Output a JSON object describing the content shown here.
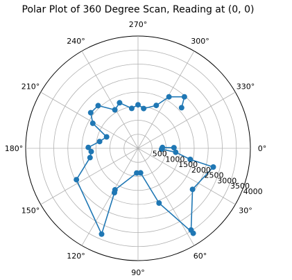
{
  "chart_data": {
    "type": "scatter",
    "projection": "polar",
    "title": "Polar Plot of 360 Degree Scan, Reading at (0, 0)",
    "theta_direction": "clockwise",
    "theta_zero": "east",
    "angle_ticks": [
      0,
      30,
      60,
      90,
      120,
      150,
      180,
      210,
      240,
      270,
      300,
      330
    ],
    "angle_tick_labels": [
      "0°",
      "30°",
      "60°",
      "90°",
      "120°",
      "150°",
      "180°",
      "210°",
      "240°",
      "270°",
      "300°",
      "330°"
    ],
    "radial_ticks": [
      500,
      1000,
      1500,
      2000,
      2500,
      3000,
      3500,
      4000
    ],
    "radial_tick_labels": [
      "500",
      "1000",
      "1500",
      "2000",
      "2500",
      "3000",
      "3500",
      "4000"
    ],
    "rlim": [
      0,
      4000
    ],
    "grid": true,
    "color": "#1f77b4",
    "series": [
      {
        "points": [
          {
            "theta": 359,
            "r": 1280
          },
          {
            "theta": 358,
            "r": 870
          },
          {
            "theta": 2,
            "r": 840
          },
          {
            "theta": 6,
            "r": 1350
          },
          {
            "theta": 12,
            "r": 1900
          },
          {
            "theta": 14,
            "r": 2760
          },
          {
            "theta": 37,
            "r": 2430
          },
          {
            "theta": 57,
            "r": 3470
          },
          {
            "theta": 57,
            "r": 3610
          },
          {
            "theta": 69,
            "r": 2090
          },
          {
            "theta": 84,
            "r": 880
          },
          {
            "theta": 93,
            "r": 880
          },
          {
            "theta": 119,
            "r": 1690
          },
          {
            "theta": 118,
            "r": 1790
          },
          {
            "theta": 113,
            "r": 3320
          },
          {
            "theta": 153,
            "r": 2460
          },
          {
            "theta": 169,
            "r": 1740
          },
          {
            "theta": 176,
            "r": 1670
          },
          {
            "theta": 181,
            "r": 1770
          },
          {
            "theta": 190,
            "r": 1390
          },
          {
            "theta": 200,
            "r": 1190
          },
          {
            "theta": 209,
            "r": 1840
          },
          {
            "theta": 217,
            "r": 2110
          },
          {
            "theta": 227,
            "r": 2080
          },
          {
            "theta": 239,
            "r": 1600
          },
          {
            "theta": 248,
            "r": 1750
          },
          {
            "theta": 261,
            "r": 1440
          },
          {
            "theta": 270,
            "r": 1550
          },
          {
            "theta": 278,
            "r": 1430
          },
          {
            "theta": 293,
            "r": 1660
          },
          {
            "theta": 301,
            "r": 2140
          },
          {
            "theta": 312,
            "r": 2470
          },
          {
            "theta": 317,
            "r": 2120
          }
        ]
      }
    ]
  }
}
